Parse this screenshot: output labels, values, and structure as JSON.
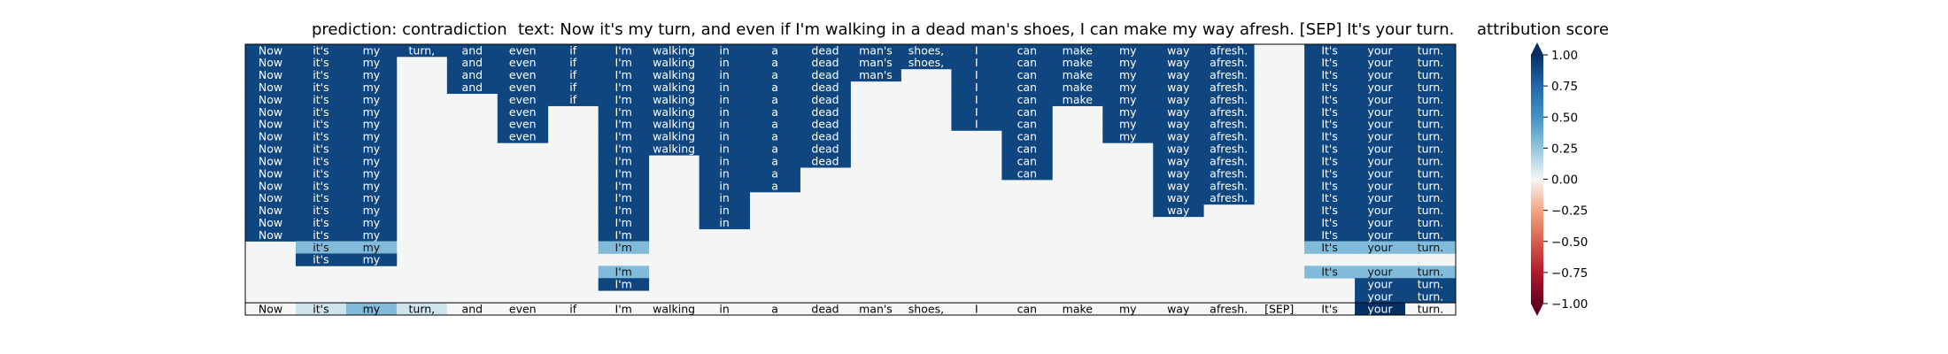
{
  "header": {
    "prediction": "prediction:  contradiction",
    "text": "text:  Now it's my turn, and even if I'm walking in a dead man's shoes, I can make my way afresh. [SEP] It's your turn."
  },
  "colorbar": {
    "title": "attribution score",
    "ticks": [
      "1.00",
      "0.75",
      "0.50",
      "0.25",
      "0.00",
      "−0.25",
      "−0.50",
      "−0.75",
      "−1.00"
    ]
  },
  "chart_data": {
    "type": "heatmap",
    "title": "attribution score",
    "colormap": "RdBu",
    "vmin": -1.0,
    "vmax": 1.0,
    "tokens": [
      "Now",
      "it's",
      "my",
      "turn,",
      "and",
      "even",
      "if",
      "I'm",
      "walking",
      "in",
      "a",
      "dead",
      "man's",
      "shoes,",
      "I",
      "can",
      "make",
      "my",
      "way",
      "afresh.",
      "[SEP]",
      "It's",
      "your",
      "turn."
    ],
    "rows": [
      [
        0.9,
        0.9,
        0.9,
        0.9,
        0.9,
        0.9,
        0.9,
        0.9,
        0.9,
        0.9,
        0.9,
        0.9,
        0.9,
        0.9,
        0.9,
        0.9,
        0.9,
        0.9,
        0.9,
        0.9,
        null,
        0.9,
        0.9,
        0.9
      ],
      [
        0.9,
        0.9,
        0.9,
        null,
        0.9,
        0.9,
        0.9,
        0.9,
        0.9,
        0.9,
        0.9,
        0.9,
        0.9,
        0.9,
        0.9,
        0.9,
        0.9,
        0.9,
        0.9,
        0.9,
        null,
        0.9,
        0.9,
        0.9
      ],
      [
        0.9,
        0.9,
        0.9,
        null,
        0.9,
        0.9,
        0.9,
        0.9,
        0.9,
        0.9,
        0.9,
        0.9,
        0.9,
        null,
        0.9,
        0.9,
        0.9,
        0.9,
        0.9,
        0.9,
        null,
        0.9,
        0.9,
        0.9
      ],
      [
        0.9,
        0.9,
        0.9,
        null,
        0.9,
        0.9,
        0.9,
        0.9,
        0.9,
        0.9,
        0.9,
        0.9,
        null,
        null,
        0.9,
        0.9,
        0.9,
        0.9,
        0.9,
        0.9,
        null,
        0.9,
        0.9,
        0.9
      ],
      [
        0.9,
        0.9,
        0.9,
        null,
        null,
        0.9,
        0.9,
        0.9,
        0.9,
        0.9,
        0.9,
        0.9,
        null,
        null,
        0.9,
        0.9,
        0.9,
        0.9,
        0.9,
        0.9,
        null,
        0.9,
        0.9,
        0.9
      ],
      [
        0.9,
        0.9,
        0.9,
        null,
        null,
        0.9,
        null,
        0.9,
        0.9,
        0.9,
        0.9,
        0.9,
        null,
        null,
        0.9,
        0.9,
        null,
        0.9,
        0.9,
        0.9,
        null,
        0.9,
        0.9,
        0.9
      ],
      [
        0.9,
        0.9,
        0.9,
        null,
        null,
        0.9,
        null,
        0.9,
        0.9,
        0.9,
        0.9,
        0.9,
        null,
        null,
        0.9,
        0.9,
        null,
        0.9,
        0.9,
        0.9,
        null,
        0.9,
        0.9,
        0.9
      ],
      [
        0.9,
        0.9,
        0.9,
        null,
        null,
        0.9,
        null,
        0.9,
        0.9,
        0.9,
        0.9,
        0.9,
        null,
        null,
        null,
        0.9,
        null,
        0.9,
        0.9,
        0.9,
        null,
        0.9,
        0.9,
        0.9
      ],
      [
        0.9,
        0.9,
        0.9,
        null,
        null,
        null,
        null,
        0.9,
        0.9,
        0.9,
        0.9,
        0.9,
        null,
        null,
        null,
        0.9,
        null,
        null,
        0.9,
        0.9,
        null,
        0.9,
        0.9,
        0.9
      ],
      [
        0.9,
        0.9,
        0.9,
        null,
        null,
        null,
        null,
        0.9,
        null,
        0.9,
        0.9,
        0.9,
        null,
        null,
        null,
        0.9,
        null,
        null,
        0.9,
        0.9,
        null,
        0.9,
        0.9,
        0.9
      ],
      [
        0.9,
        0.9,
        0.9,
        null,
        null,
        null,
        null,
        0.9,
        null,
        0.9,
        0.9,
        null,
        null,
        null,
        null,
        0.9,
        null,
        null,
        0.9,
        0.9,
        null,
        0.9,
        0.9,
        0.9
      ],
      [
        0.9,
        0.9,
        0.9,
        null,
        null,
        null,
        null,
        0.9,
        null,
        0.9,
        0.9,
        null,
        null,
        null,
        null,
        null,
        null,
        null,
        0.9,
        0.9,
        null,
        0.9,
        0.9,
        0.9
      ],
      [
        0.9,
        0.9,
        0.9,
        null,
        null,
        null,
        null,
        0.9,
        null,
        0.9,
        null,
        null,
        null,
        null,
        null,
        null,
        null,
        null,
        0.9,
        0.9,
        null,
        0.9,
        0.9,
        0.9
      ],
      [
        0.9,
        0.9,
        0.9,
        null,
        null,
        null,
        null,
        0.9,
        null,
        0.9,
        null,
        null,
        null,
        null,
        null,
        null,
        null,
        null,
        0.9,
        null,
        null,
        0.9,
        0.9,
        0.9
      ],
      [
        0.9,
        0.9,
        0.9,
        null,
        null,
        null,
        null,
        0.9,
        null,
        0.9,
        null,
        null,
        null,
        null,
        null,
        null,
        null,
        null,
        null,
        null,
        null,
        0.9,
        0.9,
        0.9
      ],
      [
        0.9,
        0.9,
        0.9,
        null,
        null,
        null,
        null,
        0.9,
        null,
        null,
        null,
        null,
        null,
        null,
        null,
        null,
        null,
        null,
        null,
        null,
        null,
        0.9,
        0.9,
        0.9
      ],
      [
        null,
        0.3,
        0.3,
        null,
        null,
        null,
        null,
        0.3,
        null,
        null,
        null,
        null,
        null,
        null,
        null,
        null,
        null,
        null,
        null,
        null,
        null,
        0.3,
        0.3,
        0.3
      ],
      [
        null,
        0.9,
        0.9,
        null,
        null,
        null,
        null,
        null,
        null,
        null,
        null,
        null,
        null,
        null,
        null,
        null,
        null,
        null,
        null,
        null,
        null,
        null,
        null,
        null
      ],
      [
        null,
        null,
        null,
        null,
        null,
        null,
        null,
        0.3,
        null,
        null,
        null,
        null,
        null,
        null,
        null,
        null,
        null,
        null,
        null,
        null,
        null,
        0.3,
        0.3,
        0.3
      ],
      [
        null,
        null,
        null,
        null,
        null,
        null,
        null,
        0.9,
        null,
        null,
        null,
        null,
        null,
        null,
        null,
        null,
        null,
        null,
        null,
        null,
        null,
        null,
        0.9,
        0.9
      ],
      [
        null,
        null,
        null,
        null,
        null,
        null,
        null,
        null,
        null,
        null,
        null,
        null,
        null,
        null,
        null,
        null,
        null,
        null,
        null,
        null,
        null,
        null,
        0.9,
        0.9
      ]
    ],
    "bottom_row": [
      0.0,
      0.1,
      0.3,
      0.1,
      0.0,
      0.0,
      0.0,
      0.0,
      0.0,
      0.0,
      0.0,
      0.0,
      0.0,
      0.0,
      0.0,
      0.0,
      0.0,
      0.0,
      0.0,
      0.0,
      0.0,
      0.0,
      1.0,
      0.0
    ]
  }
}
